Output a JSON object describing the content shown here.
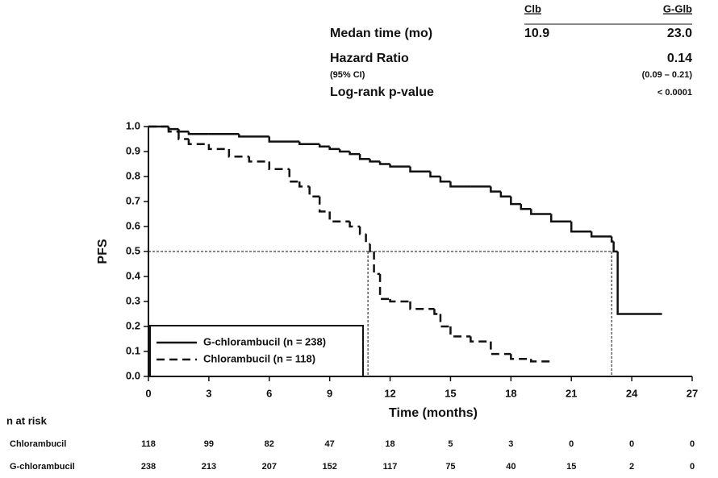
{
  "chart_data": {
    "type": "step",
    "x_label": "Time (months)",
    "y_label": "PFS",
    "xlim": [
      0,
      27
    ],
    "ylim": [
      0,
      1
    ],
    "xticks": [
      0,
      3,
      6,
      9,
      12,
      15,
      18,
      21,
      24,
      27
    ],
    "yticks": [
      {
        "value": 0,
        "label": "0.0"
      },
      0.1,
      0.2,
      0.3,
      0.4,
      0.5,
      0.6,
      0.7,
      0.8,
      0.9,
      {
        "value": 1,
        "label": "1.0"
      }
    ],
    "series": [
      {
        "name": "G-chlorambucil (n = 238)",
        "color": "#111111",
        "line_style": "solid",
        "x": [
          0,
          1,
          1.5,
          2,
          3,
          4.5,
          6,
          7.5,
          8.5,
          9,
          9.5,
          10,
          10.5,
          11,
          11.5,
          12,
          13,
          14,
          14.5,
          15,
          16,
          17,
          17.5,
          18,
          18.5,
          19,
          20,
          21,
          22,
          23,
          23.1,
          23.3,
          25.5
        ],
        "values": [
          1.0,
          0.99,
          0.98,
          0.97,
          0.97,
          0.96,
          0.94,
          0.93,
          0.92,
          0.91,
          0.9,
          0.89,
          0.87,
          0.86,
          0.85,
          0.84,
          0.82,
          0.8,
          0.78,
          0.76,
          0.76,
          0.74,
          0.72,
          0.69,
          0.67,
          0.65,
          0.62,
          0.58,
          0.56,
          0.54,
          0.5,
          0.25,
          0.25
        ]
      },
      {
        "name": "Chlorambucil (n = 118)",
        "color": "#111111",
        "line_style": "dashed",
        "x": [
          0,
          1,
          1.5,
          2,
          3,
          4,
          5,
          6,
          7,
          7.5,
          8,
          8.5,
          9,
          10,
          10.5,
          10.8,
          11,
          11.2,
          11.5,
          12,
          13,
          14.2,
          14.5,
          15,
          16,
          17,
          18,
          19,
          20
        ],
        "values": [
          1.0,
          0.98,
          0.95,
          0.93,
          0.91,
          0.88,
          0.86,
          0.83,
          0.78,
          0.76,
          0.72,
          0.66,
          0.62,
          0.6,
          0.57,
          0.53,
          0.5,
          0.41,
          0.31,
          0.3,
          0.27,
          0.25,
          0.2,
          0.16,
          0.14,
          0.09,
          0.07,
          0.06,
          0.06
        ]
      }
    ],
    "stats": {
      "columns": [
        "Clb",
        "G-Glb"
      ],
      "rows": [
        {
          "label": "Medan time (mo)",
          "values": [
            "10.9",
            "23.0"
          ]
        },
        {
          "label": "Hazard Ratio",
          "value": "0.14"
        },
        {
          "label": "(95% CI)",
          "value": "(0.09 – 0.21)"
        },
        {
          "label": "Log-rank p-value",
          "value": "< 0.0001"
        }
      ]
    },
    "risk_table": {
      "title": "n at risk",
      "rows": [
        {
          "name": "Chlorambucil",
          "values": [
            118,
            99,
            82,
            47,
            18,
            5,
            3,
            0,
            0,
            0
          ]
        },
        {
          "name": "G-chlorambucil",
          "values": [
            238,
            213,
            207,
            152,
            117,
            75,
            40,
            15,
            2,
            0
          ]
        }
      ]
    }
  }
}
